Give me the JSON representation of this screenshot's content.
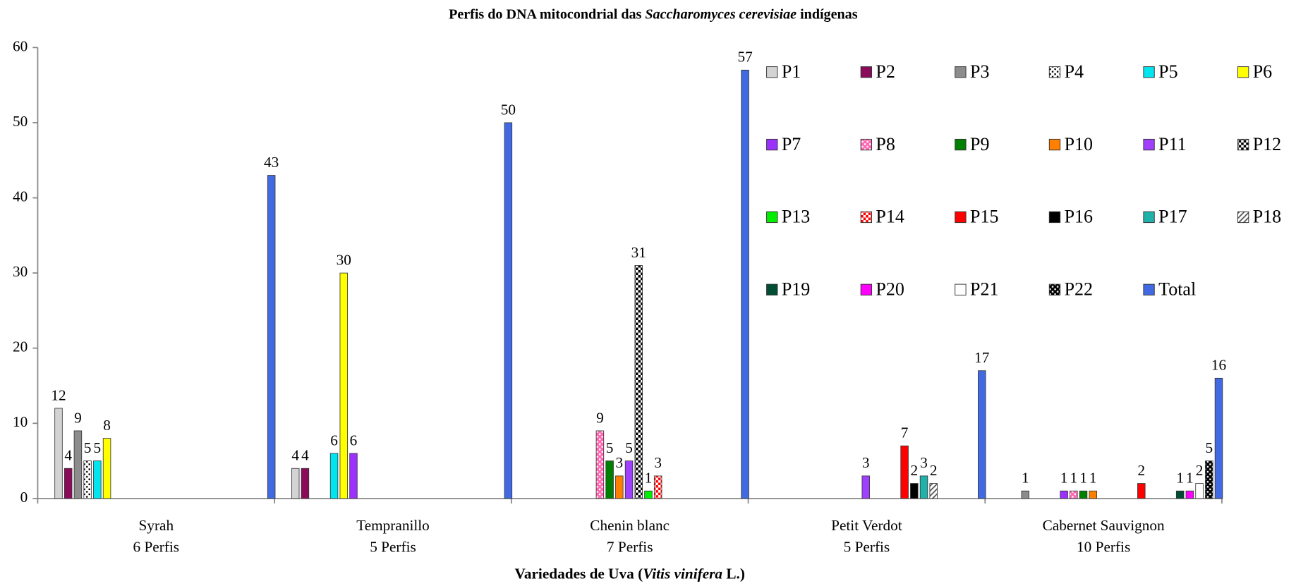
{
  "chart_data": {
    "type": "bar",
    "title_parts": [
      "Perfis do DNA mitocondrial das ",
      "Saccharomyces cerevisiae",
      " indígenas"
    ],
    "x_label_parts": [
      "Variedades de Uva (",
      "Vitis vinifera",
      " L.)"
    ],
    "categories": [
      [
        "Syrah",
        "6 Perfis"
      ],
      [
        "Tempranillo",
        "5 Perfis"
      ],
      [
        "Chenin blanc",
        "7 Perfis"
      ],
      [
        "Petit Verdot",
        "5 Perfis"
      ],
      [
        "Cabernet Sauvignon",
        "10 Perfis"
      ]
    ],
    "ylim": [
      0,
      60
    ],
    "yticks": [
      0,
      10,
      20,
      30,
      40,
      50,
      60
    ],
    "grid": false,
    "legend": "upper right",
    "series": [
      {
        "name": "P1",
        "color": "#d3d3d3",
        "values": [
          12,
          4,
          null,
          null,
          null
        ]
      },
      {
        "name": "P2",
        "color": "#8b0a5a",
        "values": [
          4,
          4,
          null,
          null,
          null
        ]
      },
      {
        "name": "P3",
        "color": "#8c8c8c",
        "values": [
          9,
          null,
          null,
          null,
          1
        ]
      },
      {
        "name": "P4",
        "color": "#ffffff",
        "pattern": "dots",
        "pattern_color": "#000000",
        "values": [
          5,
          null,
          null,
          null,
          null
        ]
      },
      {
        "name": "P5",
        "color": "#00e5ee",
        "values": [
          5,
          6,
          null,
          null,
          null
        ]
      },
      {
        "name": "P6",
        "color": "#ffff00",
        "values": [
          8,
          30,
          null,
          null,
          null
        ]
      },
      {
        "name": "P7",
        "color": "#9b30ff",
        "values": [
          null,
          6,
          null,
          null,
          1
        ]
      },
      {
        "name": "P8",
        "color": "#ff69b4",
        "pattern": "dots",
        "pattern_color": "#ffffff",
        "values": [
          null,
          null,
          9,
          null,
          1
        ]
      },
      {
        "name": "P9",
        "color": "#008000",
        "values": [
          null,
          null,
          5,
          null,
          1
        ]
      },
      {
        "name": "P10",
        "color": "#ff7f00",
        "values": [
          null,
          null,
          3,
          null,
          1
        ]
      },
      {
        "name": "P11",
        "color": "#a040ff",
        "values": [
          null,
          null,
          5,
          3,
          null
        ]
      },
      {
        "name": "P12",
        "color": "#000000",
        "pattern": "checker",
        "pattern_color": "#ffffff",
        "values": [
          null,
          null,
          31,
          null,
          null
        ]
      },
      {
        "name": "P13",
        "color": "#00ee00",
        "values": [
          null,
          null,
          1,
          null,
          null
        ]
      },
      {
        "name": "P14",
        "color": "#ffffff",
        "pattern": "checker",
        "pattern_color": "#ff0000",
        "values": [
          null,
          null,
          3,
          null,
          null
        ]
      },
      {
        "name": "P15",
        "color": "#ff0000",
        "values": [
          null,
          null,
          null,
          7,
          2
        ]
      },
      {
        "name": "P16",
        "color": "#000000",
        "values": [
          null,
          null,
          null,
          2,
          null
        ]
      },
      {
        "name": "P17",
        "color": "#20b2aa",
        "values": [
          null,
          null,
          null,
          3,
          null
        ]
      },
      {
        "name": "P18",
        "color": "#ffffff",
        "pattern": "hatch",
        "pattern_color": "#555555",
        "values": [
          null,
          null,
          null,
          2,
          null
        ]
      },
      {
        "name": "P19",
        "color": "#004d33",
        "values": [
          null,
          null,
          null,
          null,
          1
        ]
      },
      {
        "name": "P20",
        "color": "#ff00ff",
        "values": [
          null,
          null,
          null,
          null,
          1
        ]
      },
      {
        "name": "P21",
        "color": "#ffffff",
        "values": [
          null,
          null,
          null,
          null,
          2
        ]
      },
      {
        "name": "P22",
        "color": "#000000",
        "pattern": "dots",
        "pattern_color": "#ffffff",
        "values": [
          null,
          null,
          null,
          null,
          5
        ]
      },
      {
        "name": "Total",
        "color": "#4169e1",
        "values": [
          43,
          50,
          57,
          17,
          16
        ]
      }
    ]
  }
}
